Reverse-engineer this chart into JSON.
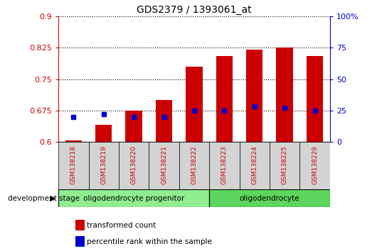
{
  "title": "GDS2379 / 1393061_at",
  "samples": [
    "GSM138218",
    "GSM138219",
    "GSM138220",
    "GSM138221",
    "GSM138222",
    "GSM138223",
    "GSM138224",
    "GSM138225",
    "GSM138229"
  ],
  "transformed_count": [
    0.603,
    0.64,
    0.675,
    0.7,
    0.78,
    0.805,
    0.82,
    0.825,
    0.805
  ],
  "percentile_rank": [
    20,
    22,
    20,
    20,
    25,
    25,
    28,
    27,
    25
  ],
  "ylim_left": [
    0.6,
    0.9
  ],
  "ylim_right": [
    0,
    100
  ],
  "baseline": 0.6,
  "yticks_left": [
    0.6,
    0.675,
    0.75,
    0.825,
    0.9
  ],
  "yticks_right": [
    0,
    25,
    50,
    75,
    100
  ],
  "ytick_labels_left": [
    "0.6",
    "0.675",
    "0.75",
    "0.825",
    "0.9"
  ],
  "ytick_labels_right": [
    "0",
    "25",
    "50",
    "75",
    "100%"
  ],
  "bar_color": "#cc0000",
  "dot_color": "#0000cc",
  "group1_label": "oligodendrocyte progenitor",
  "group2_label": "oligodendrocyte",
  "group1_indices": [
    0,
    1,
    2,
    3,
    4
  ],
  "group2_indices": [
    5,
    6,
    7,
    8
  ],
  "stage_label": "development stage",
  "legend_bar": "transformed count",
  "legend_dot": "percentile rank within the sample",
  "bar_width": 0.55,
  "axis_left_color": "#cc0000",
  "axis_right_color": "#0000cc",
  "sample_bg": "#d3d3d3",
  "group_bg": "#90ee90",
  "group_bg2": "#5cd65c"
}
